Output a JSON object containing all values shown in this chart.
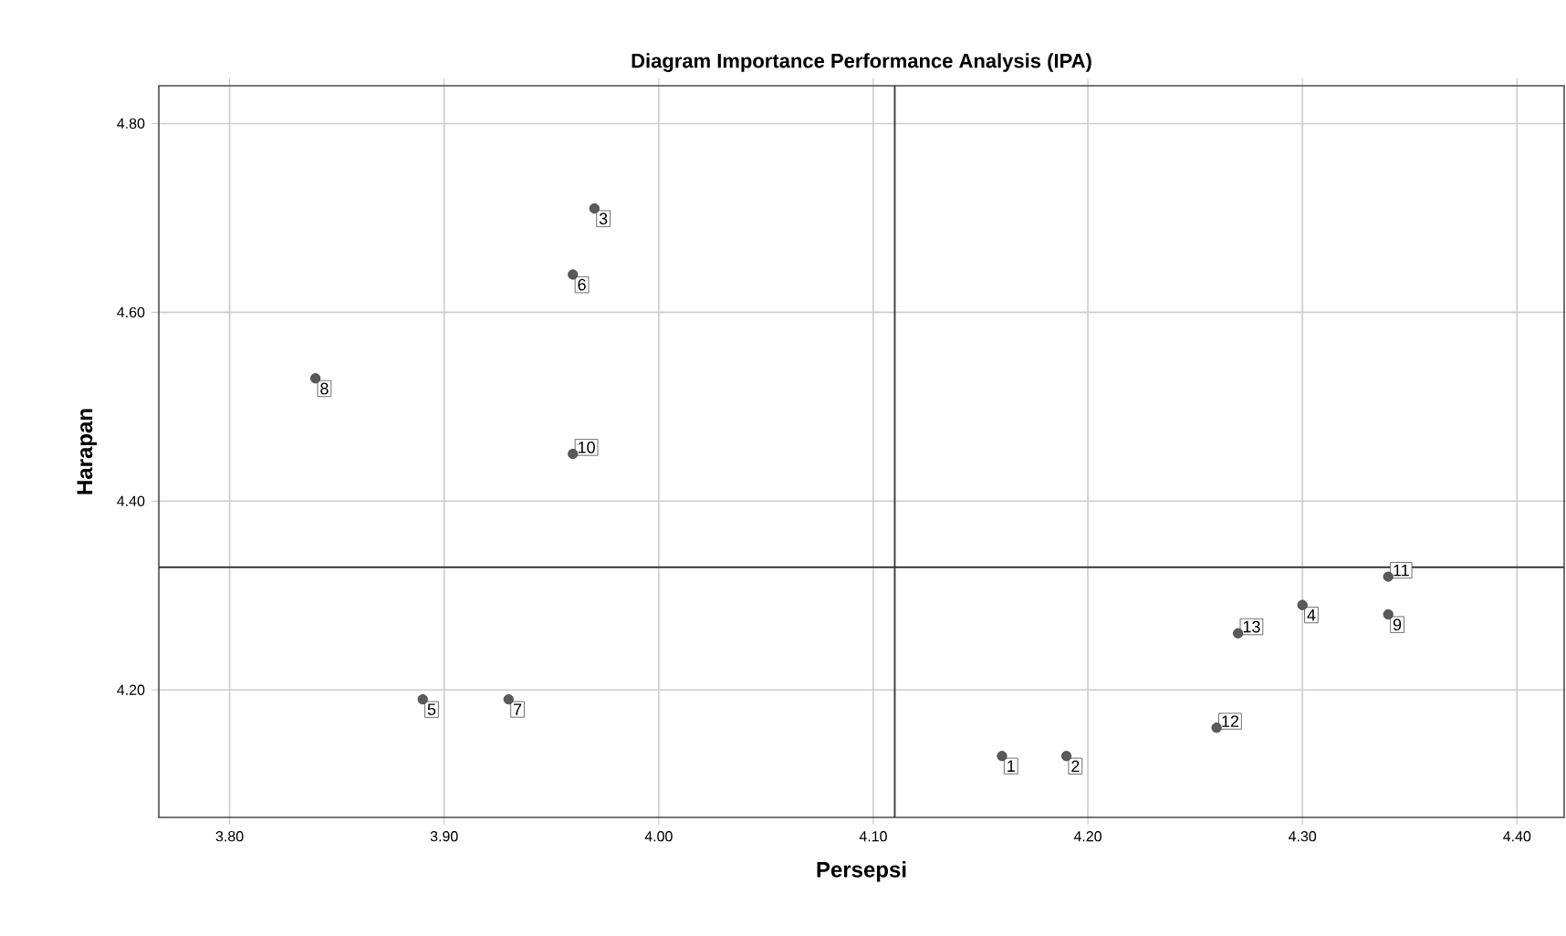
{
  "chart_data": {
    "type": "scatter",
    "title": "Diagram Importance Performance Analysis (IPA)",
    "xlabel": "Persepsi",
    "ylabel": "Harapan",
    "series": [
      {
        "color": "#5a5a5a",
        "x": [
          4.16,
          4.19,
          3.97,
          4.3,
          3.89,
          3.96,
          3.93,
          3.84,
          4.34,
          3.96,
          4.34,
          4.26,
          4.27
        ],
        "values": [
          4.13,
          4.13,
          4.71,
          4.29,
          4.19,
          4.64,
          4.19,
          4.53,
          4.28,
          4.45,
          4.32,
          4.16,
          4.26
        ]
      }
    ],
    "annotations": [
      {
        "text": "1",
        "x": 4.16,
        "y": 4.13
      },
      {
        "text": "2",
        "x": 4.19,
        "y": 4.13
      },
      {
        "text": "3",
        "x": 3.97,
        "y": 4.71
      },
      {
        "text": "4",
        "x": 4.3,
        "y": 4.29
      },
      {
        "text": "5",
        "x": 3.89,
        "y": 4.19
      },
      {
        "text": "6",
        "x": 3.96,
        "y": 4.64
      },
      {
        "text": "7",
        "x": 3.93,
        "y": 4.19
      },
      {
        "text": "8",
        "x": 3.84,
        "y": 4.53
      },
      {
        "text": "9",
        "x": 4.34,
        "y": 4.28
      },
      {
        "text": "10",
        "x": 3.96,
        "y": 4.45
      },
      {
        "text": "11",
        "x": 4.34,
        "y": 4.32
      },
      {
        "text": "12",
        "x": 4.26,
        "y": 4.16
      },
      {
        "text": "13",
        "x": 4.27,
        "y": 4.26
      }
    ],
    "xlim": [
      3.767,
      4.422
    ],
    "ylim": [
      4.065,
      4.84
    ],
    "xticks": [
      {
        "value": 3.8,
        "label": "3.80"
      },
      {
        "value": 3.9,
        "label": "3.90"
      },
      {
        "value": 4.0,
        "label": "4.00"
      },
      {
        "value": 4.1,
        "label": "4.10"
      },
      {
        "value": 4.2,
        "label": "4.20"
      },
      {
        "value": 4.3,
        "label": "4.30"
      },
      {
        "value": 4.4,
        "label": "4.40"
      }
    ],
    "yticks": [
      {
        "value": 4.2,
        "label": "4.20"
      },
      {
        "value": 4.4,
        "label": "4.40"
      },
      {
        "value": 4.6,
        "label": "4.60"
      },
      {
        "value": 4.8,
        "label": "4.80"
      }
    ],
    "ref_lines": [
      {
        "axis": "x",
        "value": 4.11,
        "color": "#333333"
      },
      {
        "axis": "y",
        "value": 4.33,
        "color": "#333333"
      }
    ],
    "grid": true,
    "marker": "circle"
  }
}
